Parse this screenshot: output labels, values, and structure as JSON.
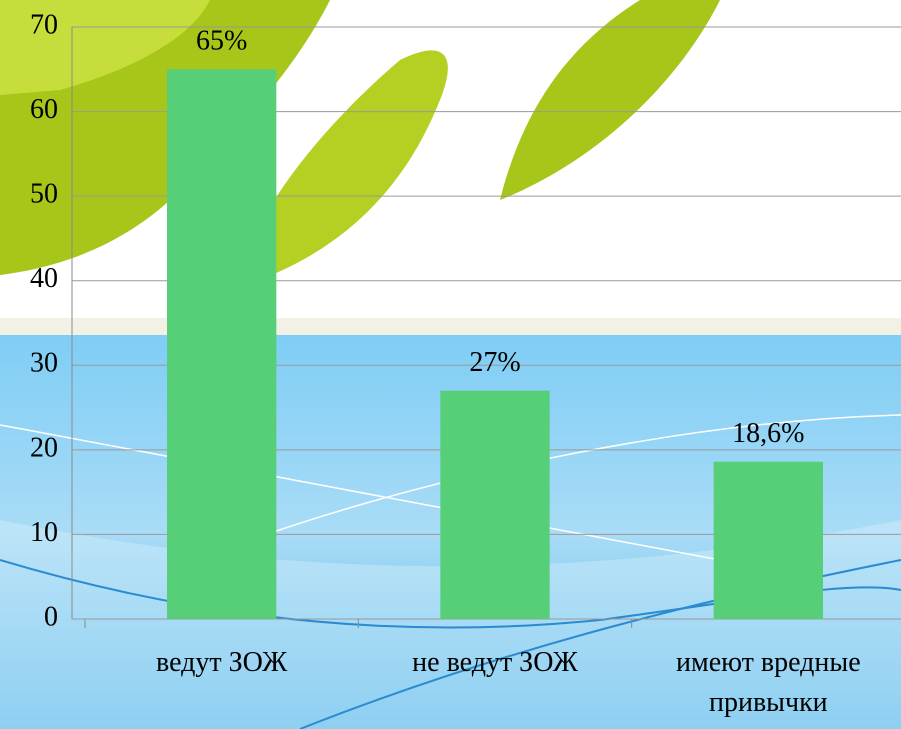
{
  "chart_data": {
    "type": "bar",
    "categories": [
      "ведут ЗОЖ",
      "не ведут ЗОЖ",
      "имеют вредные привычки"
    ],
    "values": [
      65,
      27,
      18.6
    ],
    "value_labels": [
      "65%",
      "27%",
      "18,6%"
    ],
    "color": "#57cf79",
    "ylim": [
      0,
      70
    ],
    "yticks": [
      0,
      10,
      20,
      30,
      40,
      50,
      60,
      70
    ],
    "grid": true
  }
}
